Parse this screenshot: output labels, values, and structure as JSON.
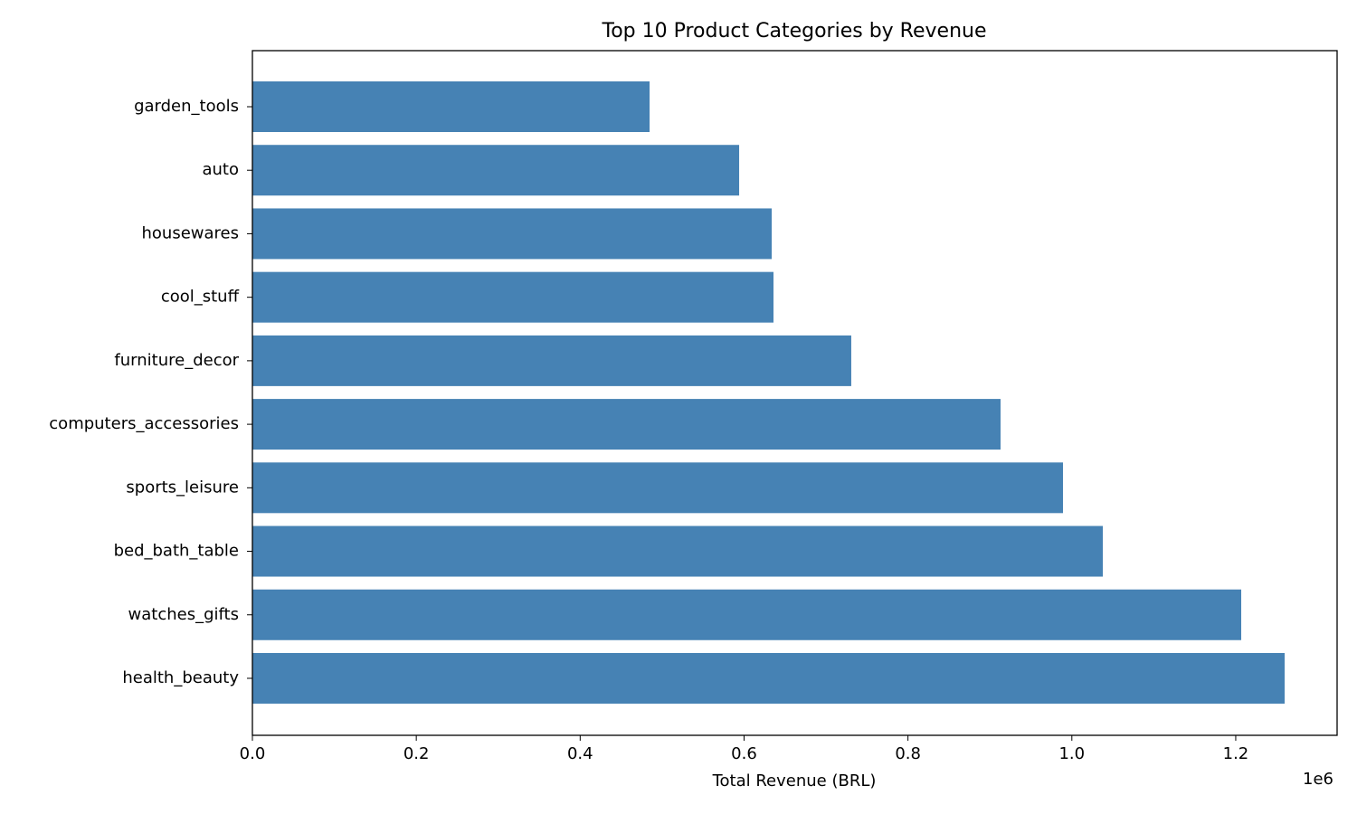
{
  "chart_data": {
    "type": "barh",
    "title": "Top 10 Product Categories by Revenue",
    "x_label": "Total Revenue (BRL)",
    "x_offset_label": "1e6",
    "categories": [
      "garden_tools",
      "auto",
      "housewares",
      "cool_stuff",
      "furniture_decor",
      "computers_accessories",
      "sports_leisure",
      "bed_bath_table",
      "watches_gifts",
      "health_beauty"
    ],
    "values": [
      484700,
      594000,
      633700,
      635900,
      730800,
      913000,
      989200,
      1037800,
      1206700,
      1259700
    ],
    "color": "#4682b4",
    "xlim": [
      0,
      1323700
    ],
    "xticks": [
      {
        "value": 0,
        "label": "0.0"
      },
      {
        "value": 200000,
        "label": "0.2"
      },
      {
        "value": 400000,
        "label": "0.4"
      },
      {
        "value": 600000,
        "label": "0.6"
      },
      {
        "value": 800000,
        "label": "0.8"
      },
      {
        "value": 1000000,
        "label": "1.0"
      },
      {
        "value": 1200000,
        "label": "1.2"
      }
    ],
    "grid": false
  }
}
